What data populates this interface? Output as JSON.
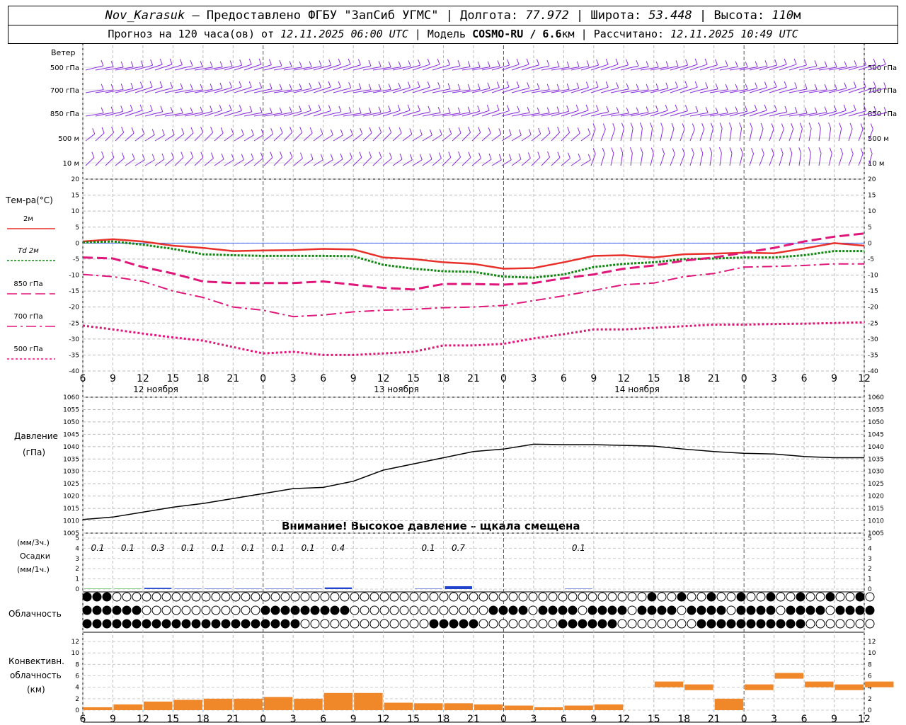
{
  "header": {
    "station": "Nov_Karasuk",
    "provider": "– Предоставлено ФГБУ \"ЗапСиб УГМС\"",
    "lon_label": "Долгота:",
    "lon": "77.972",
    "lat_label": "Широта:",
    "lat": "53.448",
    "alt_label": "Высота:",
    "alt": "110",
    "alt_unit": "м",
    "forecast_label": "Прогноз на 120 часа(ов) от",
    "forecast_from": "12.11.2025 06:00 UTC",
    "model_label": "Модель",
    "model": "COSMO-RU / 6.6",
    "model_unit": "км",
    "calc_label": "Рассчитано:",
    "calc": "12.11.2025 10:49 UTC"
  },
  "wind_panel": {
    "title": "Ветер",
    "levels": [
      "500 гПа",
      "700 гПа",
      "850 гПа",
      "500 м",
      "10 м"
    ],
    "color": "#8a2be2"
  },
  "temp_panel": {
    "title": "Тем-ра(°С)",
    "legend": [
      "2м",
      "Td 2м",
      "850 гПа",
      "700 гПа",
      "500 гПа"
    ],
    "yticks": [
      20,
      15,
      10,
      5,
      0,
      -5,
      -10,
      -15,
      -20,
      -25,
      -30,
      -35,
      -40
    ]
  },
  "time_axis": {
    "hours": [
      "6",
      "9",
      "12",
      "15",
      "18",
      "21",
      "0",
      "3",
      "6",
      "9",
      "12",
      "15",
      "18",
      "21",
      "0",
      "3",
      "6",
      "9",
      "12",
      "15",
      "18",
      "21",
      "0",
      "3",
      "6",
      "9",
      "12"
    ],
    "days": [
      "12 ноября",
      "13 ноября",
      "14 ноября"
    ]
  },
  "pressure_panel": {
    "title": "Давление",
    "unit": "(гПа)",
    "yticks": [
      1060,
      1055,
      1050,
      1045,
      1040,
      1035,
      1030,
      1025,
      1020,
      1015,
      1010,
      1005
    ],
    "warning": "Внимание! Высокое давление – щкала смещена"
  },
  "precip_panel": {
    "label_3h": "(мм/3ч.)",
    "title": "Осадки",
    "label_1h": "(мм/1ч.)",
    "yticks": [
      "5",
      "4",
      "3",
      "2",
      "1",
      "0"
    ],
    "amounts": [
      "0.1",
      "0.1",
      "0.3",
      "0.1",
      "0.1",
      "0.1",
      "0.1",
      "0.1",
      "0.4",
      "0.1",
      "0.7",
      "0.1"
    ]
  },
  "cloud_panel": {
    "title": "Облачность"
  },
  "conv_panel": {
    "title_1": "Конвективн.",
    "title_2": "облачность",
    "unit": "(км)",
    "yticks": [
      "12",
      "10",
      "8",
      "6",
      "4",
      "2",
      "0"
    ]
  },
  "chart_data": [
    {
      "type": "line",
      "title": "Тем-ра(°С)",
      "x": [
        "06",
        "09",
        "12",
        "15",
        "18",
        "21",
        "00",
        "03",
        "06",
        "09",
        "12",
        "15",
        "18",
        "21",
        "00",
        "03",
        "06",
        "09",
        "12",
        "15",
        "18",
        "21",
        "00",
        "03",
        "06",
        "09",
        "12"
      ],
      "ylim": [
        -40,
        20
      ],
      "series": [
        {
          "name": "2м",
          "color": "#e8302a",
          "values": [
            0.5,
            1.2,
            0.5,
            -0.8,
            -1.5,
            -2.5,
            -2.3,
            -2.2,
            -1.8,
            -2.0,
            -4.5,
            -5.0,
            -6.0,
            -6.5,
            -8.0,
            -7.8,
            -6.0,
            -4.0,
            -3.8,
            -4.5,
            -3.5,
            -3.3,
            -3.0,
            -3.2,
            -1.7,
            0.0,
            -0.8
          ]
        },
        {
          "name": "Td 2м",
          "color": "#118811",
          "values": [
            0.2,
            0.5,
            -0.5,
            -1.8,
            -3.5,
            -3.8,
            -4.0,
            -4.0,
            -4.0,
            -4.1,
            -6.8,
            -8.0,
            -8.8,
            -9.0,
            -10.5,
            -10.8,
            -9.8,
            -7.5,
            -6.5,
            -6.0,
            -5.0,
            -4.8,
            -4.5,
            -4.5,
            -3.8,
            -2.5,
            -2.5
          ]
        },
        {
          "name": "850 гПа",
          "color": "#e0177a",
          "values": [
            -4.5,
            -4.8,
            -7.5,
            -9.5,
            -12.0,
            -12.5,
            -12.5,
            -12.5,
            -12.0,
            -13.0,
            -14.0,
            -14.5,
            -12.8,
            -12.8,
            -13.0,
            -12.5,
            -11.0,
            -9.8,
            -8.0,
            -7.0,
            -5.5,
            -4.5,
            -3.0,
            -1.5,
            0.5,
            2.0,
            3.0
          ]
        },
        {
          "name": "700 гПа",
          "color": "#e0177a",
          "values": [
            -9.8,
            -10.5,
            -12.0,
            -15.0,
            -17.0,
            -20.0,
            -21.0,
            -23.0,
            -22.5,
            -21.5,
            -21.0,
            -20.7,
            -20.2,
            -20.0,
            -19.5,
            -18.0,
            -16.5,
            -14.8,
            -13.0,
            -12.5,
            -10.5,
            -9.5,
            -7.5,
            -7.3,
            -7.0,
            -6.5,
            -6.5
          ]
        },
        {
          "name": "500 гПа",
          "color": "#e0177a",
          "values": [
            -25.8,
            -27.0,
            -28.3,
            -29.5,
            -30.5,
            -32.5,
            -34.5,
            -34.0,
            -35.0,
            -35.0,
            -34.5,
            -34.0,
            -32.0,
            -32.0,
            -31.5,
            -29.8,
            -28.5,
            -27.0,
            -27.0,
            -26.5,
            -26.0,
            -25.5,
            -25.5,
            -25.3,
            -25.2,
            -25.0,
            -24.8
          ]
        }
      ]
    },
    {
      "type": "line",
      "title": "Давление",
      "x": [
        "06",
        "09",
        "12",
        "15",
        "18",
        "21",
        "00",
        "03",
        "06",
        "09",
        "12",
        "15",
        "18",
        "21",
        "00",
        "03",
        "06",
        "09",
        "12",
        "15",
        "18",
        "21",
        "00",
        "03",
        "06",
        "09",
        "12"
      ],
      "ylim": [
        1005,
        1060
      ],
      "series": [
        {
          "name": "Давление",
          "color": "#000000",
          "values": [
            1010.5,
            1011.5,
            1013.5,
            1015.5,
            1017.0,
            1019.0,
            1021.0,
            1023.0,
            1023.5,
            1026.0,
            1030.5,
            1033.0,
            1035.5,
            1038.0,
            1039.0,
            1041.0,
            1040.8,
            1040.8,
            1040.5,
            1040.2,
            1039.0,
            1038.0,
            1037.3,
            1037.0,
            1036.0,
            1035.5,
            1035.5
          ]
        }
      ]
    },
    {
      "type": "bar",
      "title": "Осадки",
      "x": [
        "06",
        "09",
        "12",
        "15",
        "18",
        "21",
        "00",
        "03",
        "06",
        "09",
        "12",
        "15",
        "18",
        "21",
        "00",
        "03",
        "06",
        "09",
        "12",
        "15",
        "18",
        "21",
        "00",
        "03",
        "06",
        "09",
        "12"
      ],
      "ylim": [
        0,
        5
      ],
      "values_3h": [
        0.1,
        0.1,
        0.3,
        0.1,
        0.1,
        0.1,
        0.1,
        0.1,
        0.4,
        0.0,
        0.0,
        0.1,
        0.7,
        0.0,
        0.0,
        0.0,
        0.1,
        0.0,
        0.0,
        0.0,
        0.0,
        0.0,
        0.0,
        0.0,
        0.0,
        0.0,
        0.0
      ]
    },
    {
      "type": "bar",
      "title": "Конвективн. облачность",
      "x": [
        "06",
        "09",
        "12",
        "15",
        "18",
        "21",
        "00",
        "03",
        "06",
        "09",
        "12",
        "15",
        "18",
        "21",
        "00",
        "03",
        "06",
        "09",
        "12",
        "15",
        "18",
        "21",
        "00",
        "03",
        "06",
        "09",
        "12"
      ],
      "ylim": [
        0,
        13
      ],
      "values_km": [
        0.5,
        1.0,
        1.5,
        1.8,
        2.0,
        2.0,
        2.3,
        2.0,
        3.0,
        3.0,
        1.3,
        1.2,
        1.2,
        1.0,
        0.8,
        0.5,
        0.8,
        1.0,
        0.0,
        5.0,
        4.5,
        2.0,
        4.5,
        6.5,
        5.0,
        4.5,
        5.0
      ],
      "color": "#f0882a"
    }
  ]
}
